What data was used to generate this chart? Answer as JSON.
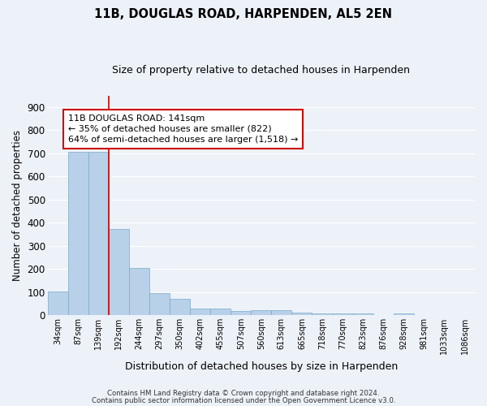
{
  "title": "11B, DOUGLAS ROAD, HARPENDEN, AL5 2EN",
  "subtitle": "Size of property relative to detached houses in Harpenden",
  "xlabel": "Distribution of detached houses by size in Harpenden",
  "ylabel": "Number of detached properties",
  "categories": [
    "34sqm",
    "87sqm",
    "139sqm",
    "192sqm",
    "244sqm",
    "297sqm",
    "350sqm",
    "402sqm",
    "455sqm",
    "507sqm",
    "560sqm",
    "613sqm",
    "665sqm",
    "718sqm",
    "770sqm",
    "823sqm",
    "876sqm",
    "928sqm",
    "981sqm",
    "1033sqm",
    "1086sqm"
  ],
  "values": [
    102,
    707,
    707,
    373,
    205,
    95,
    70,
    27,
    30,
    18,
    20,
    20,
    10,
    7,
    7,
    7,
    0,
    8,
    0,
    0,
    0
  ],
  "bar_color": "#b8d0e8",
  "bar_edge_color": "#7aaac8",
  "background_color": "#edf2f9",
  "grid_color": "#ffffff",
  "annotation_text": "11B DOUGLAS ROAD: 141sqm\n← 35% of detached houses are smaller (822)\n64% of semi-detached houses are larger (1,518) →",
  "annotation_box_color": "#cc0000",
  "vline_x": 2.5,
  "ylim": [
    0,
    950
  ],
  "yticks": [
    0,
    100,
    200,
    300,
    400,
    500,
    600,
    700,
    800,
    900
  ],
  "footnote1": "Contains HM Land Registry data © Crown copyright and database right 2024.",
  "footnote2": "Contains public sector information licensed under the Open Government Licence v3.0."
}
